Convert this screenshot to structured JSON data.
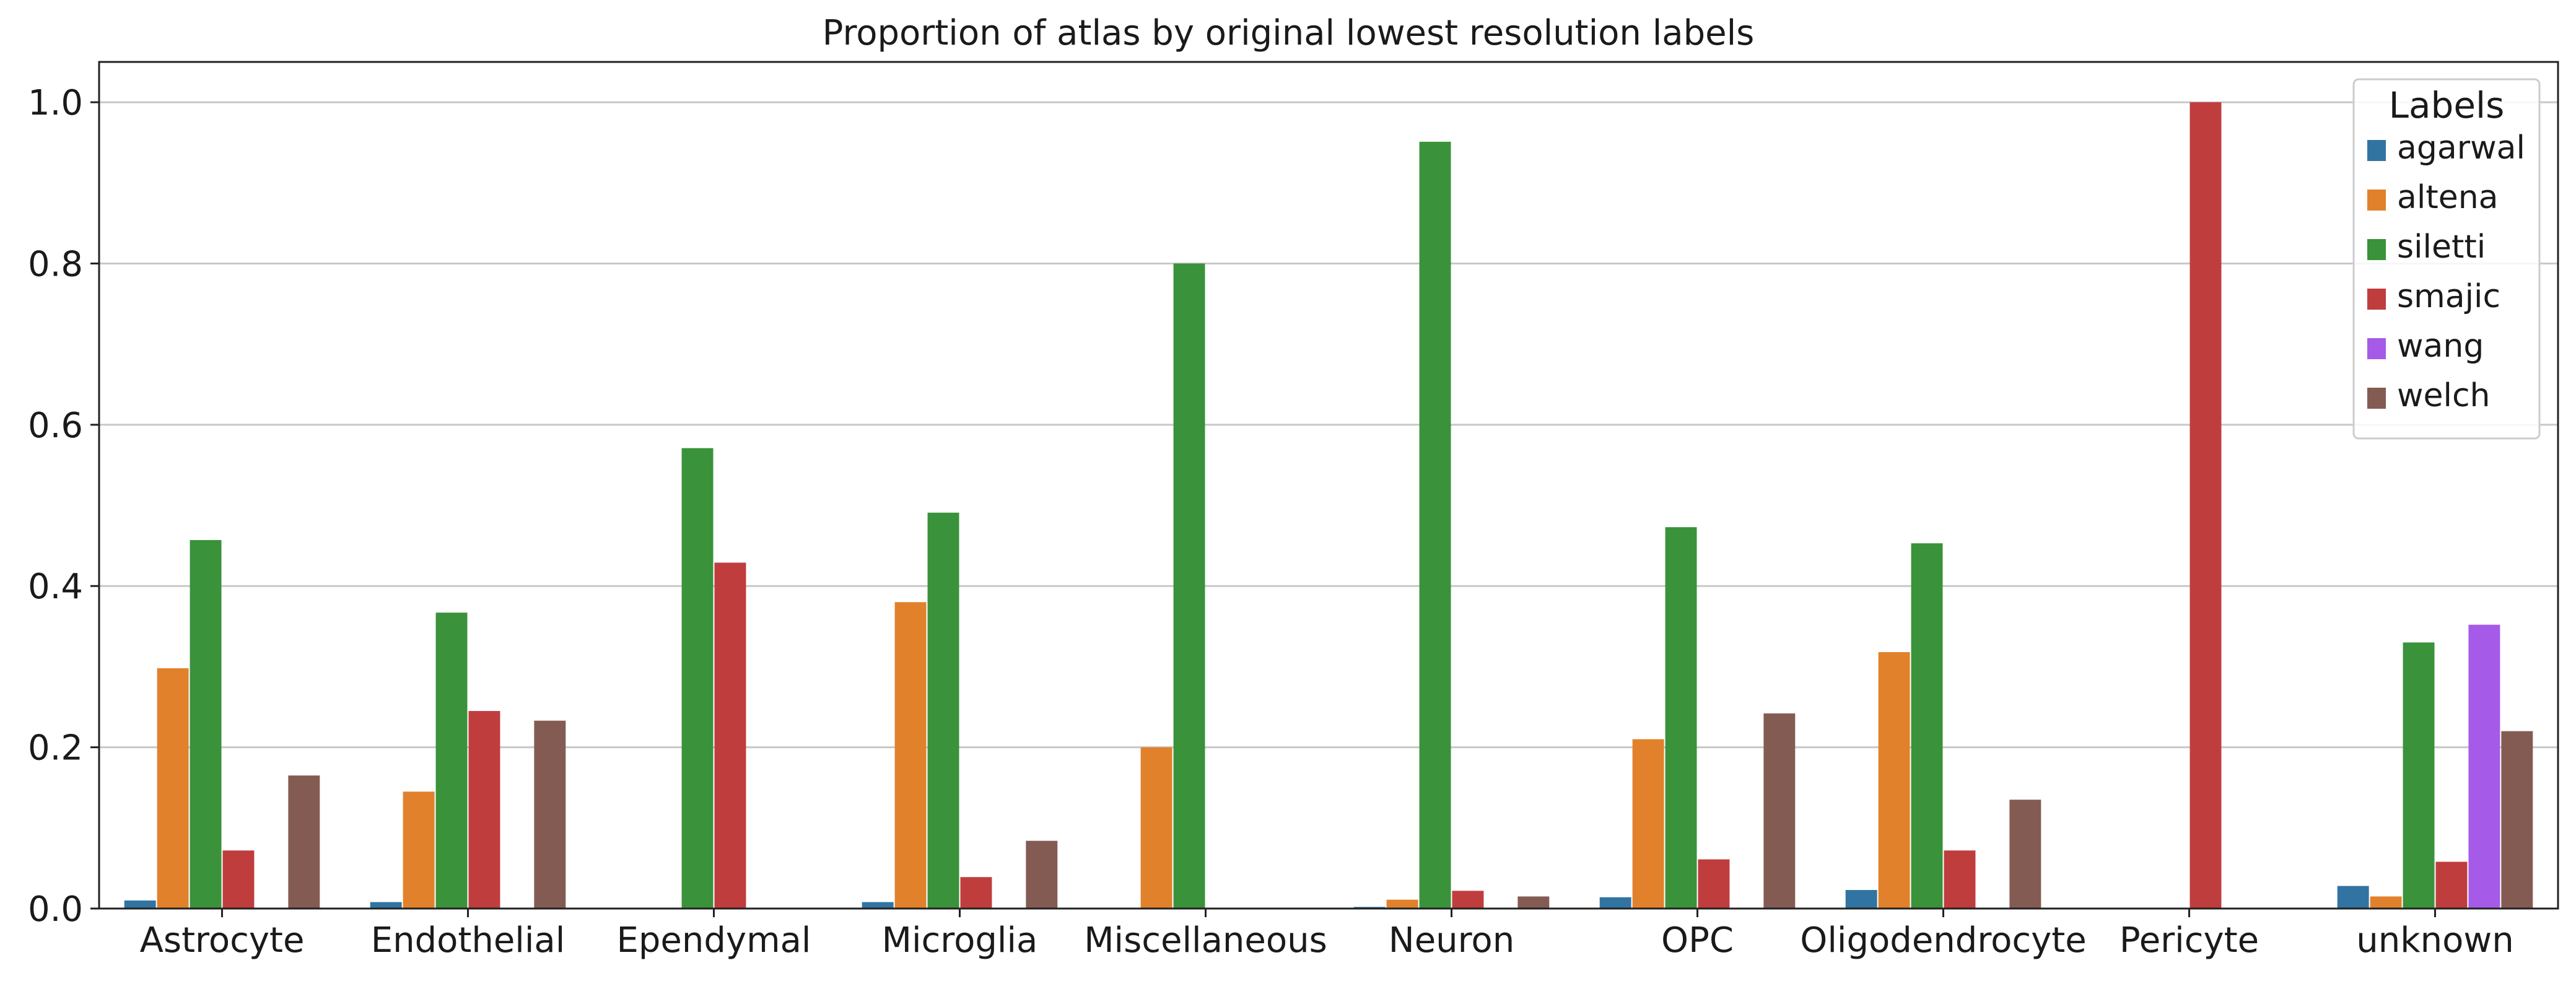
{
  "chart_data": {
    "type": "bar",
    "title": "Proportion of atlas by original lowest resolution labels",
    "xlabel": "",
    "ylabel": "",
    "ylim": [
      0,
      1.05
    ],
    "yticks": [
      "0.0",
      "0.2",
      "0.4",
      "0.6",
      "0.8",
      "1.0"
    ],
    "grid": "horizontal",
    "legend": {
      "title": "Labels",
      "position": "top-right"
    },
    "categories": [
      "Astrocyte",
      "Endothelial",
      "Ependymal",
      "Microglia",
      "Miscellaneous",
      "Neuron",
      "OPC",
      "Oligodendrocyte",
      "Pericyte",
      "unknown"
    ],
    "series": [
      {
        "name": "agarwal",
        "color": "#3274a1",
        "values": [
          0.01,
          0.008,
          0,
          0.008,
          0,
          0.002,
          0.014,
          0.023,
          0,
          0.028
        ]
      },
      {
        "name": "altena",
        "color": "#e1812c",
        "values": [
          0.298,
          0.145,
          0,
          0.38,
          0.2,
          0.011,
          0.21,
          0.318,
          0,
          0.015
        ]
      },
      {
        "name": "siletti",
        "color": "#3a923a",
        "values": [
          0.457,
          0.367,
          0.571,
          0.491,
          0.8,
          0.951,
          0.473,
          0.453,
          0,
          0.33
        ]
      },
      {
        "name": "smajic",
        "color": "#c03d3e",
        "values": [
          0.072,
          0.245,
          0.429,
          0.039,
          0,
          0.022,
          0.061,
          0.072,
          1.0,
          0.058
        ]
      },
      {
        "name": "wang",
        "color": "#a65be8",
        "values": [
          0,
          0,
          0,
          0,
          0,
          0,
          0,
          0,
          0,
          0.352
        ]
      },
      {
        "name": "welch",
        "color": "#845b53",
        "values": [
          0.165,
          0.233,
          0,
          0.084,
          0,
          0.015,
          0.242,
          0.135,
          0,
          0.22
        ]
      }
    ]
  }
}
